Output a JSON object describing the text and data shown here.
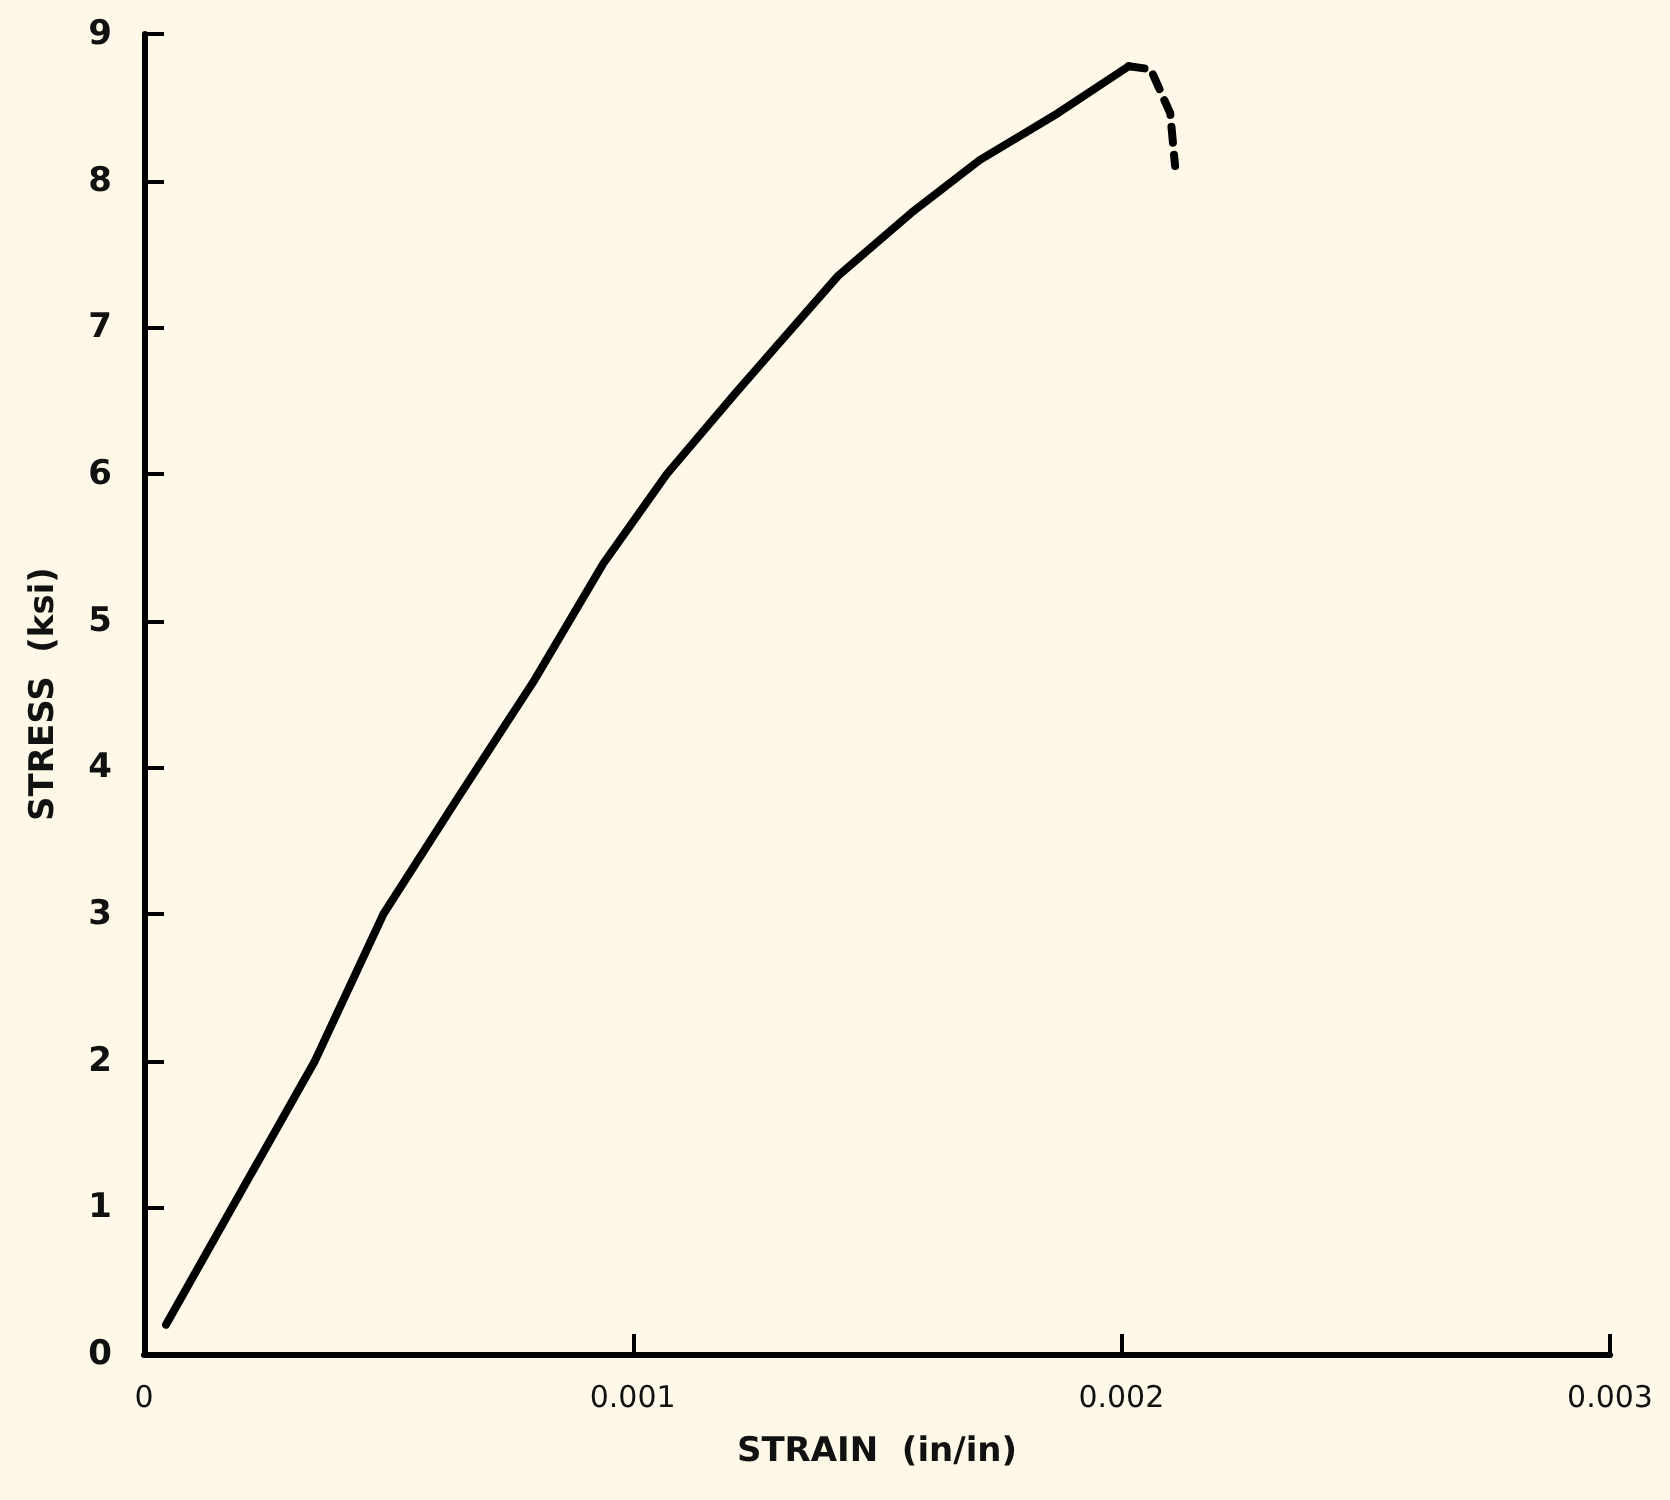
{
  "chart_data": {
    "type": "line",
    "xlabel": "STRAIN  (in/in)",
    "ylabel": "STRESS  (ksi)",
    "xlim": [
      0,
      0.003
    ],
    "xticks": [
      0,
      0.001,
      0.002,
      0.003
    ],
    "ylim": [
      0,
      9
    ],
    "yticks": [
      0,
      1,
      2,
      3,
      4,
      5,
      6,
      7,
      8,
      9
    ],
    "grid": false,
    "marker": "none",
    "series": [
      {
        "color": "#000000",
        "line_style": "solid",
        "x": [
          4.5e-05,
          0.00035,
          0.00049,
          0.00064,
          0.0008,
          0.00094,
          0.00107,
          0.00121,
          0.00142,
          0.00157,
          0.00171,
          0.00187,
          0.002015
        ],
        "values": [
          0.2,
          2.0,
          3.0,
          3.78,
          4.6,
          5.39,
          6.0,
          6.55,
          7.35,
          7.78,
          8.14,
          8.46,
          8.78
        ]
      },
      {
        "color": "#000000",
        "line_style": "dashed",
        "x": [
          0.002015,
          0.00206,
          0.0021,
          0.00211
        ],
        "values": [
          8.78,
          8.76,
          8.46,
          8.1
        ]
      }
    ]
  }
}
